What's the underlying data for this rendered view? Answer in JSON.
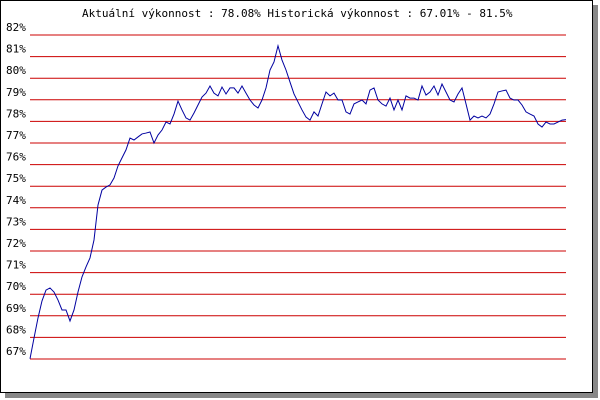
{
  "chart_data": {
    "type": "line",
    "title": "Aktuální výkonnost : 78.08%  Historická výkonnost : 67.01% - 81.5%",
    "color": "#0000a0",
    "grid": true,
    "grid_color": "#cc0000",
    "ylim": [
      67,
      82
    ],
    "yticks": [
      {
        "value": 82,
        "label": "82%"
      },
      {
        "value": 81,
        "label": "81%"
      },
      {
        "value": 80,
        "label": "80%"
      },
      {
        "value": 79,
        "label": "79%"
      },
      {
        "value": 78,
        "label": "78%"
      },
      {
        "value": 77,
        "label": "77%"
      },
      {
        "value": 76,
        "label": "76%"
      },
      {
        "value": 75,
        "label": "75%"
      },
      {
        "value": 74,
        "label": "74%"
      },
      {
        "value": 73,
        "label": "73%"
      },
      {
        "value": 72,
        "label": "72%"
      },
      {
        "value": 71,
        "label": "71%"
      },
      {
        "value": 70,
        "label": "70%"
      },
      {
        "value": 69,
        "label": "69%"
      },
      {
        "value": 68,
        "label": "68%"
      },
      {
        "value": 67,
        "label": "67%"
      }
    ],
    "values": [
      67.01,
      67.97,
      68.9,
      69.69,
      70.19,
      70.29,
      70.1,
      69.73,
      69.27,
      69.27,
      68.76,
      69.27,
      70.1,
      70.8,
      71.26,
      71.68,
      72.51,
      74.13,
      74.82,
      74.96,
      75.06,
      75.38,
      75.94,
      76.31,
      76.68,
      77.23,
      77.14,
      77.28,
      77.42,
      77.46,
      77.51,
      77.0,
      77.37,
      77.6,
      77.97,
      77.88,
      78.34,
      78.94,
      78.53,
      78.16,
      78.06,
      78.39,
      78.76,
      79.13,
      79.31,
      79.64,
      79.31,
      79.18,
      79.59,
      79.27,
      79.55,
      79.55,
      79.31,
      79.64,
      79.31,
      78.99,
      78.76,
      78.62,
      78.99,
      79.55,
      80.38,
      80.75,
      81.5,
      80.84,
      80.38,
      79.82,
      79.27,
      78.9,
      78.53,
      78.2,
      78.06,
      78.44,
      78.25,
      78.81,
      79.36,
      79.18,
      79.31,
      78.99,
      78.99,
      78.44,
      78.34,
      78.81,
      78.9,
      78.99,
      78.81,
      79.45,
      79.55,
      78.99,
      78.81,
      78.71,
      79.08,
      78.53,
      78.99,
      78.53,
      79.18,
      79.08,
      79.08,
      78.99,
      79.64,
      79.22,
      79.36,
      79.64,
      79.22,
      79.73,
      79.36,
      78.99,
      78.9,
      79.27,
      79.55,
      78.81,
      78.06,
      78.25,
      78.16,
      78.25,
      78.16,
      78.34,
      78.81,
      79.36,
      79.41,
      79.45,
      79.08,
      78.99,
      78.99,
      78.76,
      78.44,
      78.34,
      78.25,
      77.88,
      77.74,
      77.97,
      77.88,
      77.88,
      77.97,
      78.06,
      78.08
    ]
  }
}
